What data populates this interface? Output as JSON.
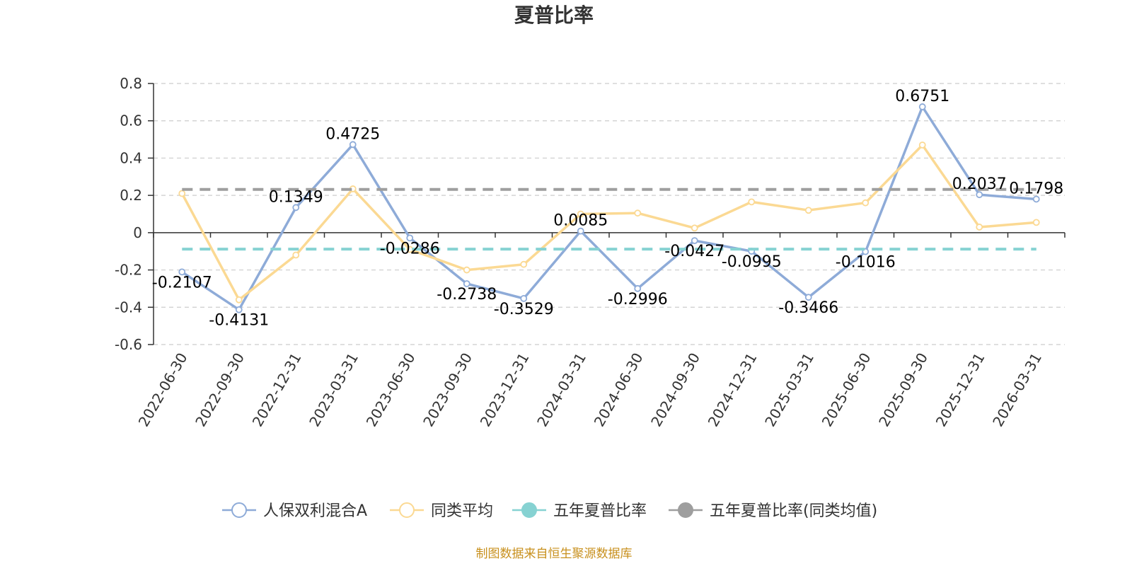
{
  "chart_data": {
    "type": "line",
    "title": "夏普比率",
    "x": [
      "2022-06-30",
      "2022-09-30",
      "2022-12-31",
      "2023-03-31",
      "2023-06-30",
      "2023-09-30",
      "2023-12-31",
      "2024-03-31",
      "2024-06-30",
      "2024-09-30",
      "2024-12-31",
      "2025-03-31",
      "2025-06-30",
      "2025-09-30",
      "2025-12-31",
      "2026-03-31"
    ],
    "ylim": [
      -0.6,
      0.8
    ],
    "yticks": [
      "0.8",
      "0.6",
      "0.4",
      "0.2",
      "0",
      "-0.2",
      "-0.4",
      "-0.6"
    ],
    "grid": true,
    "legend_position": "bottom",
    "series": [
      {
        "name": "人保双利混合A",
        "color": "#8eabd8",
        "values": [
          -0.2107,
          -0.4131,
          0.1349,
          0.4725,
          -0.0286,
          -0.2738,
          -0.3529,
          0.0085,
          -0.2996,
          -0.0427,
          -0.0995,
          -0.3466,
          -0.1016,
          0.6751,
          0.2037,
          0.1798
        ],
        "labels": [
          "-0.2107",
          "-0.4131",
          "0.1349",
          "0.4725",
          "-0.0286",
          "-0.2738",
          "-0.3529",
          "0.0085",
          "-0.2996",
          "-0.0427",
          "-0.0995",
          "-0.3466",
          "-0.1016",
          "0.6751",
          "0.2037",
          "0.1798"
        ]
      },
      {
        "name": "同类平均",
        "color": "#fbd993",
        "values": [
          0.21,
          -0.36,
          -0.12,
          0.235,
          -0.09,
          -0.2,
          -0.17,
          0.1,
          0.105,
          0.025,
          0.165,
          0.12,
          0.16,
          0.47,
          0.03,
          0.055
        ]
      },
      {
        "name": "五年夏普比率",
        "color": "#86d2d2",
        "dashed": true,
        "values": [
          -0.088,
          -0.088,
          -0.088,
          -0.088,
          -0.088,
          -0.088,
          -0.088,
          -0.088,
          -0.088,
          -0.088,
          -0.088,
          -0.088,
          -0.088,
          -0.088,
          -0.088,
          -0.088
        ]
      },
      {
        "name": "五年夏普比率(同类均值)",
        "color": "#9e9e9e",
        "dashed": true,
        "values": [
          0.232,
          0.232,
          0.232,
          0.232,
          0.232,
          0.232,
          0.232,
          0.232,
          0.232,
          0.232,
          0.232,
          0.232,
          0.232,
          0.232,
          0.232,
          0.232
        ]
      }
    ]
  },
  "footer": {
    "source": "制图数据来自恒生聚源数据库",
    "color": "#c8901d"
  }
}
